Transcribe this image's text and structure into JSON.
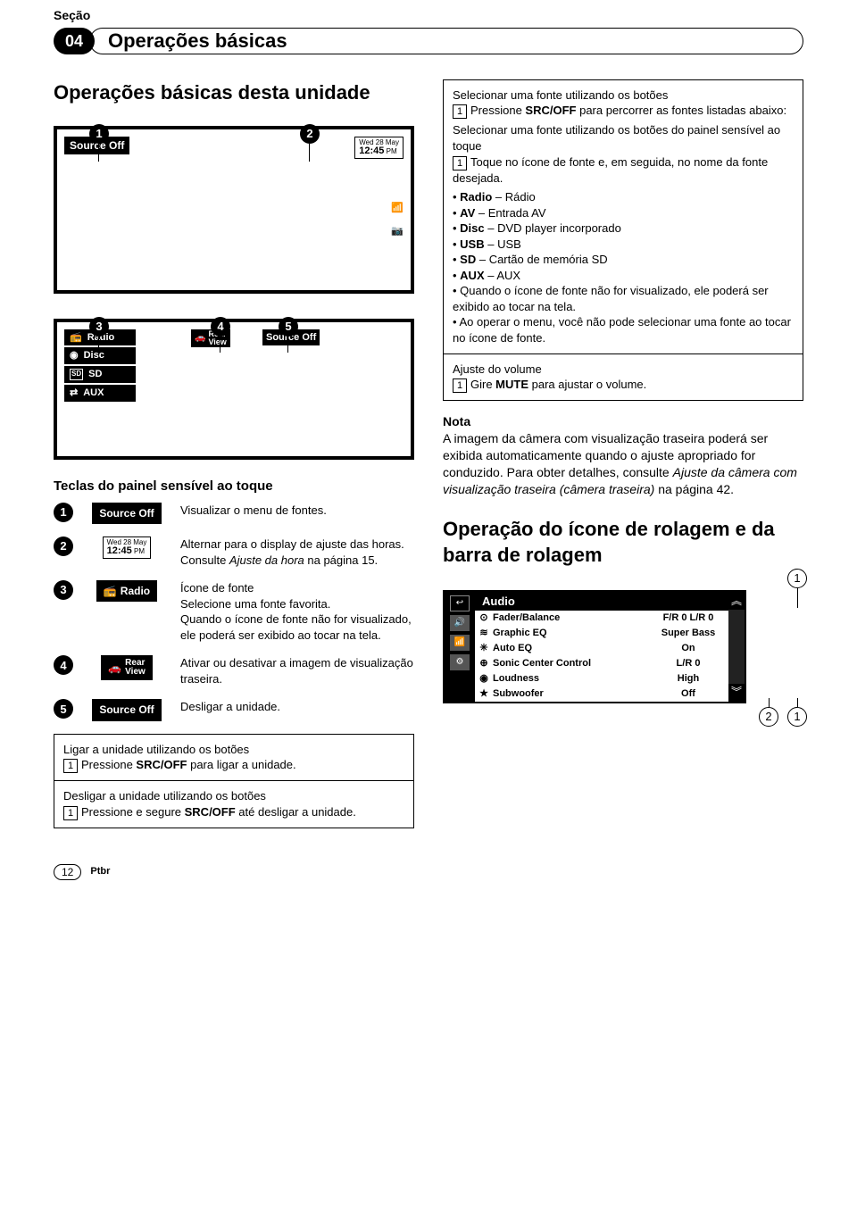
{
  "section_label": "Seção",
  "section_number": "04",
  "section_title": "Operações básicas",
  "h_unit_operations": "Operações básicas desta unidade",
  "display": {
    "source_off": "Source Off",
    "date": "Wed 28 May",
    "time": "12:45",
    "ampm": "PM",
    "src_radio": "Radio",
    "src_disc": "Disc",
    "src_sd": "SD",
    "src_aux": "AUX",
    "rear": "Rear",
    "view": "View"
  },
  "keys_title": "Teclas do painel sensível ao toque",
  "keys": {
    "k1_desc": "Visualizar o menu de fontes.",
    "k2_desc": "Alternar para o display de ajuste das horas.\nConsulte Ajuste da hora na página 15.",
    "k3_desc": "Ícone de fonte\nSelecione uma fonte favorita.\nQuando o ícone de fonte não for visualizado, ele poderá ser exibido ao tocar na tela.",
    "k4_desc": "Ativar ou desativar a imagem de visualização traseira.",
    "k5_desc": "Desligar a unidade."
  },
  "instr": {
    "power_on_t": "Ligar a unidade utilizando os botões",
    "power_on_1": "Pressione SRC/OFF para ligar a unidade.",
    "power_off_t": "Desligar a unidade utilizando os botões",
    "power_off_1": "Pressione e segure SRC/OFF até desligar a unidade.",
    "select_src_btn_t": "Selecionar uma fonte utilizando os botões",
    "select_src_btn_1": "Pressione SRC/OFF para percorrer as fontes listadas abaixo:",
    "select_src_touch_t": "Selecionar uma fonte utilizando os botões do painel sensível ao toque",
    "select_src_touch_1": "Toque no ícone de fonte e, em seguida, no nome da fonte desejada.",
    "bullets": {
      "radio": "Radio – Rádio",
      "av": "AV – Entrada AV",
      "disc": "Disc – DVD player incorporado",
      "usb": "USB – USB",
      "sd": "SD – Cartão de memória SD",
      "aux": "AUX – AUX",
      "not_shown": "Quando o ícone de fonte não for visualizado, ele poderá ser exibido ao tocar na tela.",
      "menu": "Ao operar o menu, você não pode selecionar uma fonte ao tocar no ícone de fonte."
    },
    "volume_t": "Ajuste do volume",
    "volume_1": "Gire MUTE para ajustar o volume."
  },
  "note_label": "Nota",
  "note_body": "A imagem da câmera com visualização traseira poderá ser exibida automaticamente quando o ajuste apropriado for conduzido. Para obter detalhes, consulte Ajuste da câmera com visualização traseira (câmera traseira) na página 42.",
  "h_scroll": "Operação do ícone de rolagem e da barra de rolagem",
  "audio": {
    "title": "Audio",
    "rows": [
      {
        "icon": "⊙",
        "label": "Fader/Balance",
        "value": "F/R 0 L/R 0"
      },
      {
        "icon": "≋",
        "label": "Graphic EQ",
        "value": "Super Bass"
      },
      {
        "icon": "✳",
        "label": "Auto EQ",
        "value": "On"
      },
      {
        "icon": "⊕",
        "label": "Sonic Center Control",
        "value": "L/R 0"
      },
      {
        "icon": "◉",
        "label": "Loudness",
        "value": "High"
      },
      {
        "icon": "★",
        "label": "Subwoofer",
        "value": "Off"
      }
    ]
  },
  "page_number": "12",
  "lang": "Ptbr",
  "italic_ref1": "Ajuste da hora",
  "italic_ref2": "Ajuste da câmera com visualização traseira (câmera traseira)"
}
